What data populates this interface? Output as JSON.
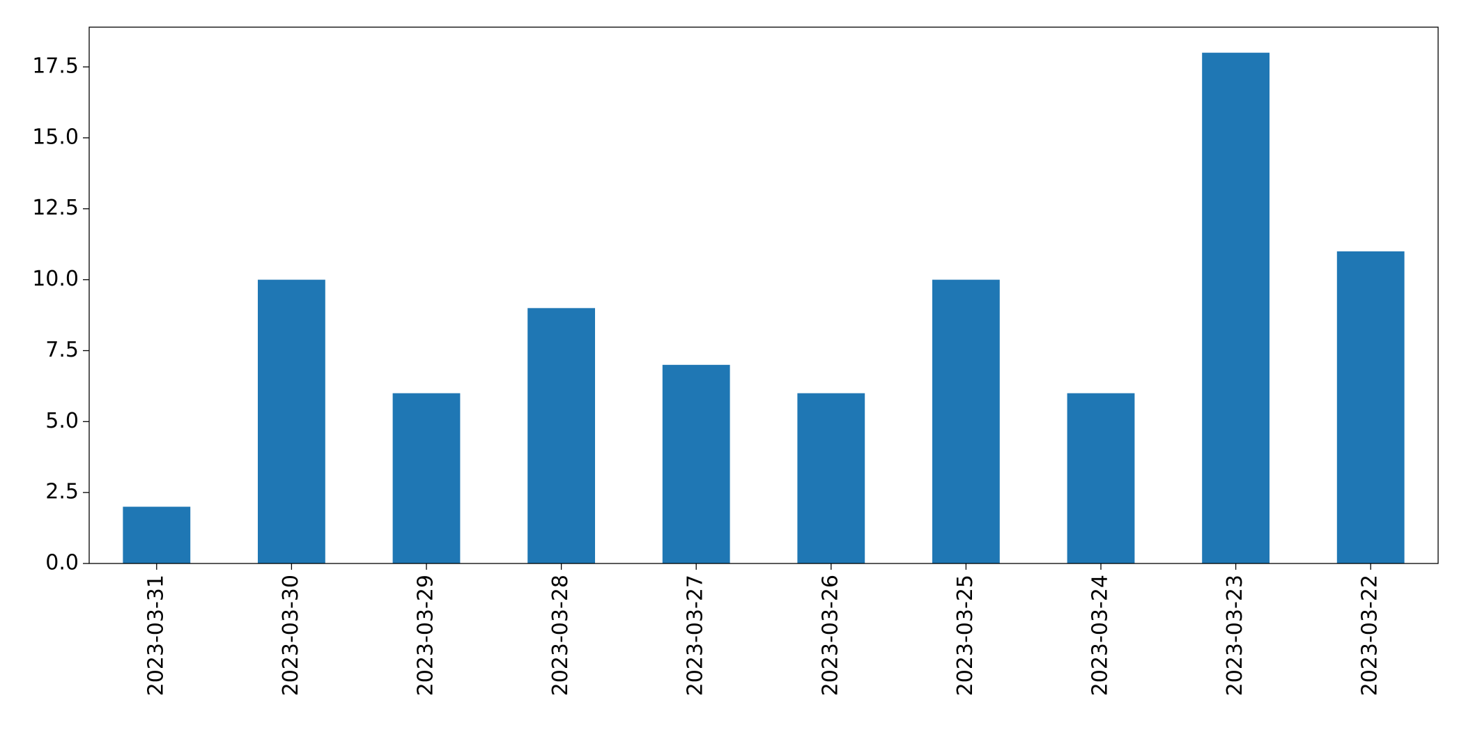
{
  "chart_data": {
    "type": "bar",
    "categories": [
      "2023-03-31",
      "2023-03-30",
      "2023-03-29",
      "2023-03-28",
      "2023-03-27",
      "2023-03-26",
      "2023-03-25",
      "2023-03-24",
      "2023-03-23",
      "2023-03-22"
    ],
    "values": [
      2,
      10,
      6,
      9,
      7,
      6,
      10,
      6,
      18,
      11
    ],
    "color": "#1f77b4",
    "ylim": [
      0,
      18.9
    ],
    "yticks": [
      {
        "value": 0,
        "label": "0.0"
      },
      2.5,
      {
        "value": 5,
        "label": "5.0"
      },
      7.5,
      {
        "value": 10,
        "label": "10.0"
      },
      12.5,
      {
        "value": 15,
        "label": "15.0"
      },
      17.5
    ],
    "grid": false
  }
}
